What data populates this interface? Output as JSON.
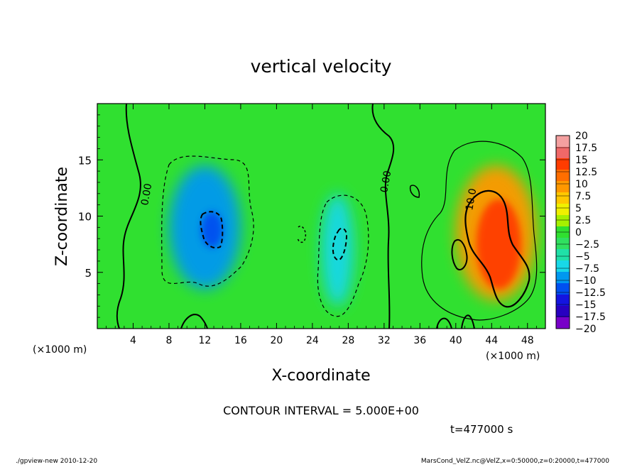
{
  "chart_data": {
    "type": "heatmap",
    "title": "vertical velocity",
    "xlabel": "X-coordinate",
    "ylabel": "Z-coordinate",
    "x_unit_left": "(×1000 m)",
    "x_unit_right": "(×1000 m)",
    "xlim": [
      0,
      50
    ],
    "ylim": [
      0,
      20
    ],
    "x_ticks": [
      4,
      8,
      12,
      16,
      20,
      24,
      28,
      32,
      36,
      40,
      44,
      48
    ],
    "y_ticks": [
      5,
      10,
      15
    ],
    "contour_interval_text": "CONTOUR INTERVAL = 5.000E+00",
    "time_text": "t=477000 s",
    "contour_labels": [
      "0.00",
      "0.00",
      "10.0"
    ],
    "colorbar": {
      "levels": [
        "20",
        "17.5",
        "15",
        "12.5",
        "10",
        "7.5",
        "5",
        "2.5",
        "0",
        "−2.5",
        "−5",
        "−7.5",
        "−10",
        "−12.5",
        "−15",
        "−17.5",
        "−20"
      ],
      "colors": [
        "#f4a0a0",
        "#f06868",
        "#ff3c00",
        "#ff6e00",
        "#ff9800",
        "#ffc800",
        "#f0f000",
        "#a6f000",
        "#30e030",
        "#30e060",
        "#20e0a8",
        "#18d8e8",
        "#0098f0",
        "#0050f0",
        "#1414e0",
        "#2800c0",
        "#7800c8"
      ]
    },
    "field_blobs": [
      {
        "x": 12,
        "z": 9,
        "rx": 4,
        "rz": 5.5,
        "value": -9
      },
      {
        "x": 12.8,
        "z": 8.8,
        "rx": 1.2,
        "rz": 1.6,
        "value": -12
      },
      {
        "x": 26.8,
        "z": 7,
        "rx": 1.8,
        "rz": 5,
        "value": -8
      },
      {
        "x": 44.5,
        "z": 8.5,
        "rx": 4.5,
        "rz": 6,
        "value": 10
      },
      {
        "x": 44.8,
        "z": 7.5,
        "rx": 2.5,
        "rz": 4,
        "value": 13
      }
    ],
    "footer_left": "./gpview-new 2010-12-20",
    "footer_right": "MarsCond_VelZ.nc@VelZ,x=0:50000,z=0:20000,t=477000"
  }
}
